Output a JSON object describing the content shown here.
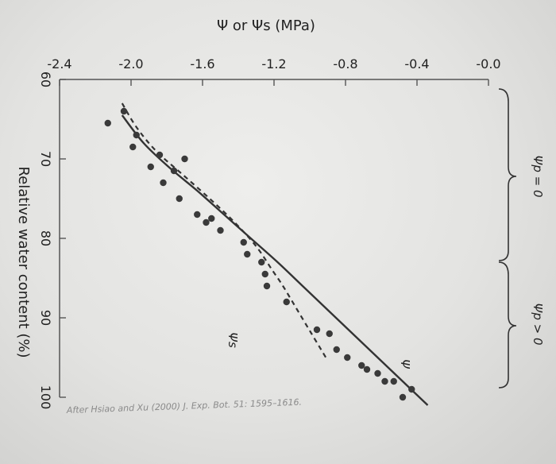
{
  "chart_data": {
    "type": "scatter",
    "orientation": "rotated-90-clockwise",
    "xlabel": "Relative water content (%)",
    "ylabel": "Ψ or Ψs (MPa)",
    "xlim": [
      60,
      100
    ],
    "ylim": [
      -2.4,
      0.0
    ],
    "x_ticks": [
      "60",
      "70",
      "80",
      "90",
      "100"
    ],
    "y_ticks": [
      "-2.4",
      "-2.0",
      "-1.6",
      "-1.2",
      "-0.8",
      "-0.4",
      "-0.0"
    ],
    "series": [
      {
        "name": "",
        "style": "points",
        "x": [
          64.0,
          65.5,
          67.0,
          68.5,
          69.5,
          70.0,
          71.0,
          71.5,
          73.0,
          75.0,
          77.0,
          77.5,
          78.0,
          79.0,
          80.5,
          82.0,
          83.0,
          84.5,
          86.0,
          88.0,
          91.5,
          92.0,
          94.0,
          95.0,
          96.0,
          96.5,
          97.0,
          98.0,
          100.0,
          98.0,
          99.0
        ],
        "y": [
          -2.04,
          -2.13,
          -1.97,
          -1.99,
          -1.84,
          -1.7,
          -1.89,
          -1.76,
          -1.82,
          -1.73,
          -1.63,
          -1.55,
          -1.58,
          -1.5,
          -1.37,
          -1.35,
          -1.27,
          -1.25,
          -1.24,
          -1.13,
          -0.96,
          -0.89,
          -0.85,
          -0.79,
          -0.71,
          -0.68,
          -0.62,
          -0.58,
          -0.48,
          -0.53,
          -0.43
        ]
      },
      {
        "name": "Ψ",
        "style": "solid-curve",
        "x": [
          64.5,
          68,
          71,
          74,
          77,
          80,
          83,
          86,
          89,
          92,
          95,
          98,
          101
        ],
        "y": [
          -2.05,
          -1.93,
          -1.79,
          -1.63,
          -1.48,
          -1.33,
          -1.18,
          -1.04,
          -0.9,
          -0.76,
          -0.62,
          -0.48,
          -0.34
        ]
      },
      {
        "name": "Ψs",
        "style": "dashed-curve",
        "x": [
          63,
          66,
          69,
          72,
          75,
          78,
          81,
          84,
          86,
          89,
          92,
          95
        ],
        "y": [
          -2.05,
          -1.97,
          -1.86,
          -1.71,
          -1.56,
          -1.42,
          -1.3,
          -1.21,
          -1.15,
          -1.07,
          -0.99,
          -0.91
        ]
      }
    ],
    "annotations": [
      {
        "text": "Ψp = 0",
        "applies_to_x": [
          60,
          80
        ]
      },
      {
        "text": "Ψp > 0",
        "applies_to_x": [
          80,
          100
        ]
      },
      {
        "text": "Ψ"
      },
      {
        "text": "Ψs"
      }
    ],
    "source": "After Hsiao and Xu (2000) J. Exp. Bot. 51: 1595–1616.",
    "grid": false,
    "colors": {
      "points": "#3a3a3a",
      "curves": "#333333",
      "axis": "#555555"
    }
  }
}
